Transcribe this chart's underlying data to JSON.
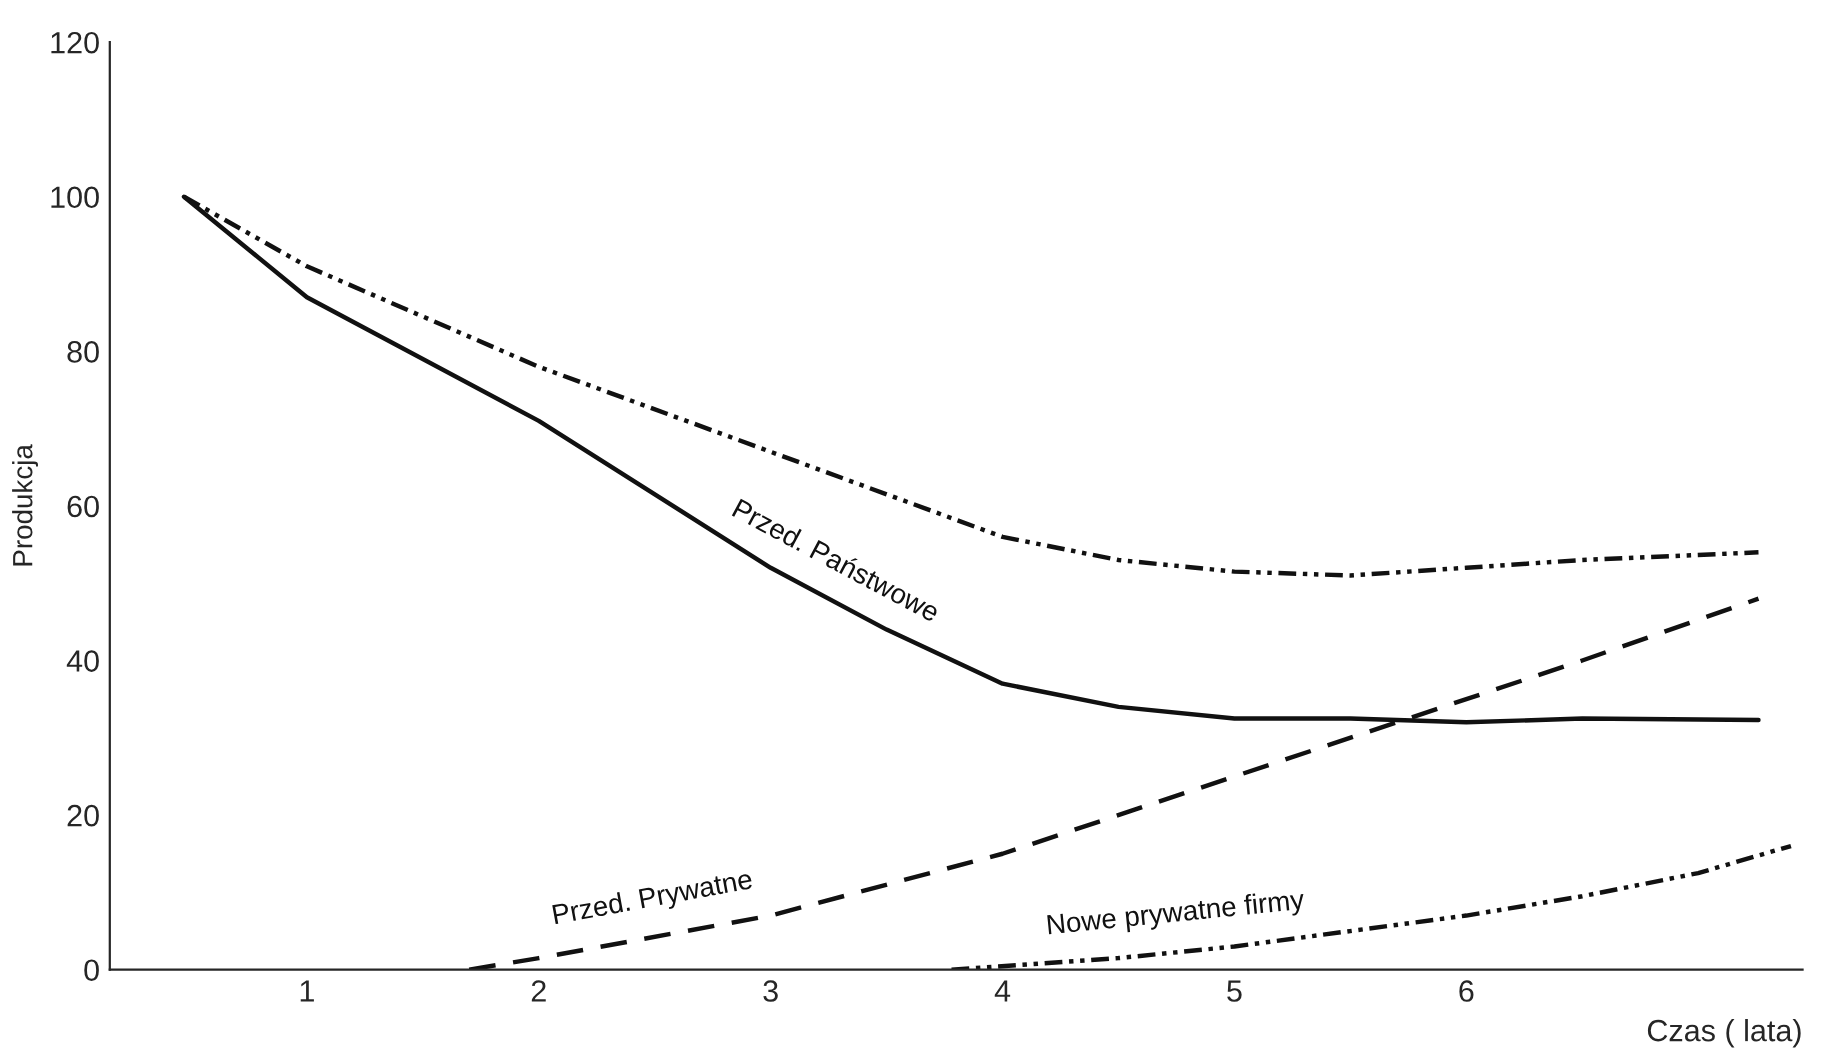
{
  "chart_data": {
    "type": "line",
    "ylabel": "Produkcja",
    "xlabel": "Czas ( lata)",
    "xlim": [
      0.15,
      7.45
    ],
    "xticks": [
      1,
      2,
      3,
      4,
      5,
      6
    ],
    "ylim": [
      0,
      120
    ],
    "yticks": [
      0,
      20,
      40,
      60,
      80,
      100,
      120
    ],
    "grid": false,
    "legend": false,
    "marker": "none",
    "series": [
      {
        "color": "#111111",
        "line_style": "dashdot",
        "x": [
          0.47,
          1,
          2,
          3,
          4,
          4.5,
          5,
          5.5,
          6,
          6.5,
          7.26
        ],
        "values": [
          100,
          91,
          78,
          67,
          56,
          53,
          51.5,
          51,
          52,
          53,
          54
        ]
      },
      {
        "name": "Przed. Państwowe",
        "color": "#111111",
        "line_style": "solid",
        "x": [
          0.47,
          1,
          2,
          3,
          3.5,
          4,
          4.5,
          5,
          5.5,
          6,
          6.5,
          7.26
        ],
        "values": [
          100,
          87,
          71,
          52,
          44,
          37,
          34,
          32.5,
          32.5,
          32,
          32.5,
          32.3
        ]
      },
      {
        "name": "Przed. Prywatne",
        "color": "#111111",
        "line_style": "dashed",
        "x": [
          1.7,
          2,
          3,
          4,
          5,
          6,
          6.5,
          7.26
        ],
        "values": [
          0,
          1.5,
          7,
          15,
          25,
          35,
          40,
          48
        ]
      },
      {
        "name": "Nowe prywatne firmy",
        "color": "#111111",
        "line_style": "dashdot",
        "x": [
          3.78,
          4.5,
          5,
          6,
          6.5,
          7,
          7.4
        ],
        "values": [
          0,
          1.5,
          3,
          7,
          9.5,
          12.5,
          16
        ]
      }
    ]
  }
}
